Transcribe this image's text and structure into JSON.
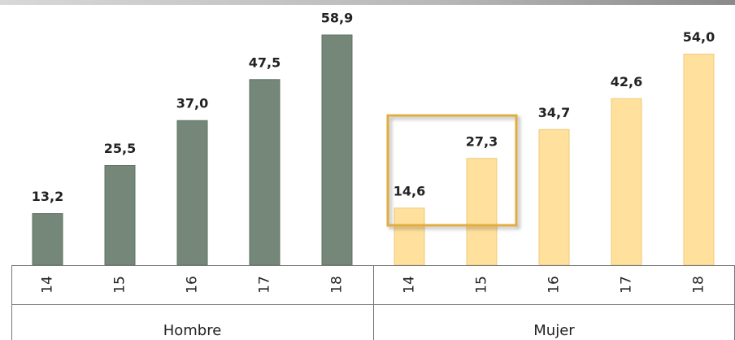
{
  "chart_data": {
    "type": "bar",
    "categories": [
      "14",
      "15",
      "16",
      "17",
      "18"
    ],
    "series": [
      {
        "name": "Hombre",
        "color": "#748779",
        "values": [
          13.2,
          25.5,
          37.0,
          47.5,
          58.9
        ],
        "value_labels": [
          "13,2",
          "25,5",
          "37,0",
          "47,5",
          "58,9"
        ]
      },
      {
        "name": "Mujer",
        "color": "#ffe09c",
        "values": [
          14.6,
          27.3,
          34.7,
          42.6,
          54.0
        ],
        "value_labels": [
          "14,6",
          "27,3",
          "34,7",
          "42,6",
          "54,0"
        ]
      }
    ]
  }
}
